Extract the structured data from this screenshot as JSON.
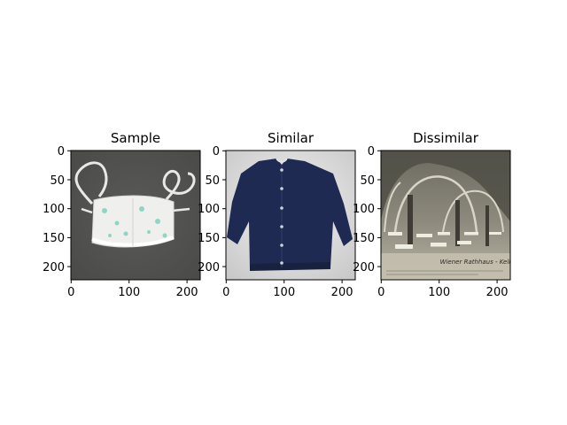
{
  "figure": {
    "panels": [
      {
        "title": "Sample",
        "image": "white fabric face mask with ear loops on dark gray background"
      },
      {
        "title": "Similar",
        "image": "navy blue button-up cardigan on light gray background"
      },
      {
        "title": "Dissimilar",
        "image": "vintage sepia postcard of arched restaurant hall with tables"
      }
    ],
    "y_ticks": [
      "0",
      "50",
      "100",
      "150",
      "200"
    ],
    "x_ticks": [
      "0",
      "100",
      "200"
    ],
    "postcard_caption": "Wiener Rathhaus - Keller"
  }
}
